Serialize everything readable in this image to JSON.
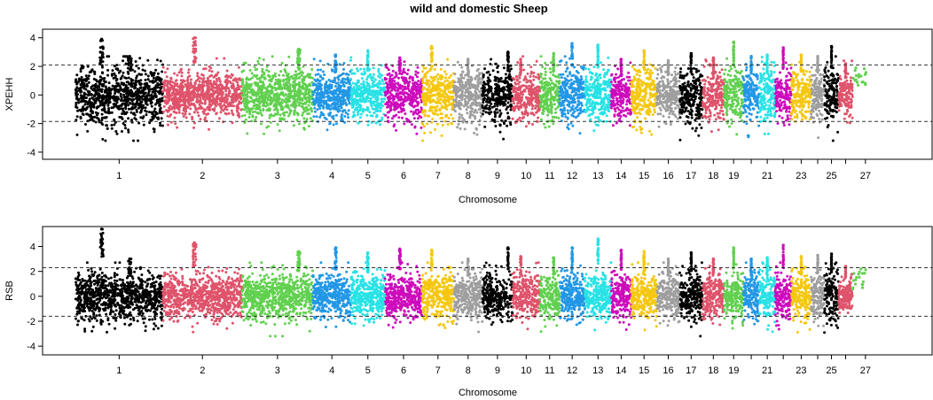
{
  "chart_data": [
    {
      "type": "scatter",
      "title": "wild and domestic Sheep",
      "xlabel": "Chromosome",
      "ylabel": "XPEHH",
      "ylim": [
        -4.5,
        4.6
      ],
      "yticks": [
        -4,
        -2,
        0,
        2,
        4
      ],
      "thresholds": [
        2.1,
        -1.85
      ],
      "chromosomes": [
        {
          "chr": "1",
          "label": "1",
          "length": 276,
          "color": "#000000",
          "spread": 1.35,
          "peaks": [
            {
              "pos": 0.3,
              "value": 3.9
            },
            {
              "pos": 0.62,
              "value": 2.7
            }
          ]
        },
        {
          "chr": "2",
          "label": "2",
          "length": 249,
          "color": "#DF536B",
          "spread": 1.1,
          "peaks": [
            {
              "pos": 0.4,
              "value": 4.0
            }
          ]
        },
        {
          "chr": "3",
          "label": "3",
          "length": 224,
          "color": "#61D04F",
          "spread": 1.25,
          "peaks": [
            {
              "pos": 0.8,
              "value": 3.2
            }
          ]
        },
        {
          "chr": "4",
          "label": "4",
          "length": 119,
          "color": "#2297E6",
          "spread": 1.2,
          "peaks": [
            {
              "pos": 0.6,
              "value": 2.8
            }
          ]
        },
        {
          "chr": "5",
          "label": "5",
          "length": 108,
          "color": "#28E2E5",
          "spread": 1.2,
          "peaks": [
            {
              "pos": 0.5,
              "value": 3.1
            }
          ]
        },
        {
          "chr": "6",
          "label": "6",
          "length": 117,
          "color": "#CD0BBC",
          "spread": 1.2,
          "peaks": [
            {
              "pos": 0.4,
              "value": 2.6
            }
          ]
        },
        {
          "chr": "7",
          "label": "7",
          "length": 100,
          "color": "#F5C710",
          "spread": 1.25,
          "peaks": [
            {
              "pos": 0.3,
              "value": 3.4
            }
          ]
        },
        {
          "chr": "8",
          "label": "8",
          "length": 90,
          "color": "#9E9E9E",
          "spread": 1.2,
          "peaks": [
            {
              "pos": 0.5,
              "value": 2.5
            }
          ]
        },
        {
          "chr": "9",
          "label": "9",
          "length": 95,
          "color": "#000000",
          "spread": 1.25,
          "peaks": [
            {
              "pos": 0.85,
              "value": 3.0
            }
          ]
        },
        {
          "chr": "10",
          "label": "10",
          "length": 86,
          "color": "#DF536B",
          "spread": 1.2,
          "peaks": [
            {
              "pos": 0.3,
              "value": 2.5
            }
          ]
        },
        {
          "chr": "11",
          "label": "11",
          "length": 62,
          "color": "#61D04F",
          "spread": 1.2,
          "peaks": [
            {
              "pos": 0.7,
              "value": 2.9
            }
          ]
        },
        {
          "chr": "12",
          "label": "12",
          "length": 80,
          "color": "#2297E6",
          "spread": 1.25,
          "peaks": [
            {
              "pos": 0.5,
              "value": 3.6
            }
          ]
        },
        {
          "chr": "13",
          "label": "13",
          "length": 83,
          "color": "#28E2E5",
          "spread": 1.25,
          "peaks": [
            {
              "pos": 0.5,
              "value": 3.5
            }
          ]
        },
        {
          "chr": "14",
          "label": "14",
          "length": 63,
          "color": "#CD0BBC",
          "spread": 1.2,
          "peaks": [
            {
              "pos": 0.5,
              "value": 2.5
            }
          ]
        },
        {
          "chr": "15",
          "label": "15",
          "length": 81,
          "color": "#F5C710",
          "spread": 1.2,
          "peaks": [
            {
              "pos": 0.5,
              "value": 3.1
            }
          ]
        },
        {
          "chr": "16",
          "label": "16",
          "length": 72,
          "color": "#9E9E9E",
          "spread": 1.15,
          "peaks": [
            {
              "pos": 0.5,
              "value": 2.4
            }
          ]
        },
        {
          "chr": "17",
          "label": "17",
          "length": 72,
          "color": "#000000",
          "spread": 1.3,
          "peaks": [
            {
              "pos": 0.5,
              "value": 2.9
            }
          ]
        },
        {
          "chr": "18",
          "label": "18",
          "length": 68,
          "color": "#DF536B",
          "spread": 1.2,
          "peaks": [
            {
              "pos": 0.5,
              "value": 2.6
            }
          ]
        },
        {
          "chr": "19",
          "label": "19",
          "length": 60,
          "color": "#61D04F",
          "spread": 1.2,
          "peaks": [
            {
              "pos": 0.5,
              "value": 3.7
            }
          ]
        },
        {
          "chr": "20",
          "label": "",
          "length": 51,
          "color": "#2297E6",
          "spread": 1.25,
          "peaks": [
            {
              "pos": 0.5,
              "value": 2.7
            }
          ]
        },
        {
          "chr": "21",
          "label": "21",
          "length": 50,
          "color": "#28E2E5",
          "spread": 1.3,
          "peaks": [
            {
              "pos": 0.5,
              "value": 2.8
            }
          ]
        },
        {
          "chr": "22",
          "label": "",
          "length": 51,
          "color": "#CD0BBC",
          "spread": 1.2,
          "peaks": [
            {
              "pos": 0.5,
              "value": 3.3
            }
          ]
        },
        {
          "chr": "23",
          "label": "23",
          "length": 62,
          "color": "#F5C710",
          "spread": 1.2,
          "peaks": [
            {
              "pos": 0.5,
              "value": 2.8
            }
          ]
        },
        {
          "chr": "24",
          "label": "",
          "length": 42,
          "color": "#9E9E9E",
          "spread": 1.2,
          "peaks": [
            {
              "pos": 0.5,
              "value": 2.7
            }
          ]
        },
        {
          "chr": "25",
          "label": "25",
          "length": 45,
          "color": "#000000",
          "spread": 1.45,
          "peaks": [
            {
              "pos": 0.5,
              "value": 3.4
            }
          ]
        },
        {
          "chr": "26",
          "label": "",
          "length": 44,
          "color": "#DF536B",
          "spread": 1.0,
          "peaks": [
            {
              "pos": 0.5,
              "value": 2.2
            }
          ]
        },
        {
          "chr": "27",
          "label": "27",
          "length": 150,
          "color": "#61D04F",
          "spread": 0.0,
          "peaks": [],
          "sparse": true
        }
      ]
    },
    {
      "type": "scatter",
      "title": "",
      "xlabel": "Chromosome",
      "ylabel": "RSB",
      "ylim": [
        -4.7,
        5.6
      ],
      "yticks": [
        -4,
        -2,
        0,
        2,
        4
      ],
      "thresholds": [
        2.3,
        -1.6
      ],
      "chromosomes": [
        {
          "chr": "1",
          "label": "1",
          "length": 276,
          "color": "#000000",
          "spread": 1.35,
          "peaks": [
            {
              "pos": 0.3,
              "value": 5.4
            },
            {
              "pos": 0.62,
              "value": 3.0
            }
          ]
        },
        {
          "chr": "2",
          "label": "2",
          "length": 249,
          "color": "#DF536B",
          "spread": 1.15,
          "peaks": [
            {
              "pos": 0.4,
              "value": 4.3
            }
          ]
        },
        {
          "chr": "3",
          "label": "3",
          "length": 224,
          "color": "#61D04F",
          "spread": 1.25,
          "peaks": [
            {
              "pos": 0.8,
              "value": 3.6
            }
          ]
        },
        {
          "chr": "4",
          "label": "4",
          "length": 119,
          "color": "#2297E6",
          "spread": 1.2,
          "peaks": [
            {
              "pos": 0.6,
              "value": 3.9
            }
          ]
        },
        {
          "chr": "5",
          "label": "5",
          "length": 108,
          "color": "#28E2E5",
          "spread": 1.2,
          "peaks": [
            {
              "pos": 0.5,
              "value": 3.5
            }
          ]
        },
        {
          "chr": "6",
          "label": "6",
          "length": 117,
          "color": "#CD0BBC",
          "spread": 1.2,
          "peaks": [
            {
              "pos": 0.4,
              "value": 3.8
            }
          ]
        },
        {
          "chr": "7",
          "label": "7",
          "length": 100,
          "color": "#F5C710",
          "spread": 1.25,
          "peaks": [
            {
              "pos": 0.3,
              "value": 3.7
            }
          ]
        },
        {
          "chr": "8",
          "label": "8",
          "length": 90,
          "color": "#9E9E9E",
          "spread": 1.2,
          "peaks": [
            {
              "pos": 0.5,
              "value": 3.0
            }
          ]
        },
        {
          "chr": "9",
          "label": "9",
          "length": 95,
          "color": "#000000",
          "spread": 1.3,
          "peaks": [
            {
              "pos": 0.85,
              "value": 3.9
            }
          ]
        },
        {
          "chr": "10",
          "label": "10",
          "length": 86,
          "color": "#DF536B",
          "spread": 1.2,
          "peaks": [
            {
              "pos": 0.3,
              "value": 3.2
            }
          ]
        },
        {
          "chr": "11",
          "label": "11",
          "length": 62,
          "color": "#61D04F",
          "spread": 1.2,
          "peaks": [
            {
              "pos": 0.7,
              "value": 3.1
            }
          ]
        },
        {
          "chr": "12",
          "label": "12",
          "length": 80,
          "color": "#2297E6",
          "spread": 1.25,
          "peaks": [
            {
              "pos": 0.5,
              "value": 3.9
            }
          ]
        },
        {
          "chr": "13",
          "label": "13",
          "length": 83,
          "color": "#28E2E5",
          "spread": 1.25,
          "peaks": [
            {
              "pos": 0.5,
              "value": 4.6
            }
          ]
        },
        {
          "chr": "14",
          "label": "14",
          "length": 63,
          "color": "#CD0BBC",
          "spread": 1.2,
          "peaks": [
            {
              "pos": 0.5,
              "value": 3.7
            }
          ]
        },
        {
          "chr": "15",
          "label": "15",
          "length": 81,
          "color": "#F5C710",
          "spread": 1.2,
          "peaks": [
            {
              "pos": 0.5,
              "value": 3.6
            }
          ]
        },
        {
          "chr": "16",
          "label": "16",
          "length": 72,
          "color": "#9E9E9E",
          "spread": 1.15,
          "peaks": [
            {
              "pos": 0.5,
              "value": 3.0
            }
          ]
        },
        {
          "chr": "17",
          "label": "17",
          "length": 72,
          "color": "#000000",
          "spread": 1.3,
          "peaks": [
            {
              "pos": 0.5,
              "value": 3.5
            }
          ]
        },
        {
          "chr": "18",
          "label": "18",
          "length": 68,
          "color": "#DF536B",
          "spread": 1.2,
          "peaks": [
            {
              "pos": 0.5,
              "value": 3.0
            }
          ]
        },
        {
          "chr": "19",
          "label": "19",
          "length": 60,
          "color": "#61D04F",
          "spread": 1.2,
          "peaks": [
            {
              "pos": 0.5,
              "value": 3.9
            }
          ]
        },
        {
          "chr": "20",
          "label": "",
          "length": 51,
          "color": "#2297E6",
          "spread": 1.3,
          "peaks": [
            {
              "pos": 0.5,
              "value": 3.0
            }
          ]
        },
        {
          "chr": "21",
          "label": "21",
          "length": 50,
          "color": "#28E2E5",
          "spread": 1.35,
          "peaks": [
            {
              "pos": 0.5,
              "value": 3.1
            }
          ]
        },
        {
          "chr": "22",
          "label": "",
          "length": 51,
          "color": "#CD0BBC",
          "spread": 1.2,
          "peaks": [
            {
              "pos": 0.5,
              "value": 4.1
            }
          ]
        },
        {
          "chr": "23",
          "label": "23",
          "length": 62,
          "color": "#F5C710",
          "spread": 1.2,
          "peaks": [
            {
              "pos": 0.5,
              "value": 3.2
            }
          ]
        },
        {
          "chr": "24",
          "label": "",
          "length": 42,
          "color": "#9E9E9E",
          "spread": 1.2,
          "peaks": [
            {
              "pos": 0.5,
              "value": 3.3
            }
          ]
        },
        {
          "chr": "25",
          "label": "25",
          "length": 45,
          "color": "#000000",
          "spread": 1.45,
          "peaks": [
            {
              "pos": 0.5,
              "value": 3.4
            }
          ]
        },
        {
          "chr": "26",
          "label": "",
          "length": 44,
          "color": "#DF536B",
          "spread": 1.0,
          "peaks": [
            {
              "pos": 0.5,
              "value": 2.4
            }
          ]
        },
        {
          "chr": "27",
          "label": "27",
          "length": 150,
          "color": "#61D04F",
          "spread": 0.0,
          "peaks": [],
          "sparse": true
        }
      ]
    }
  ]
}
